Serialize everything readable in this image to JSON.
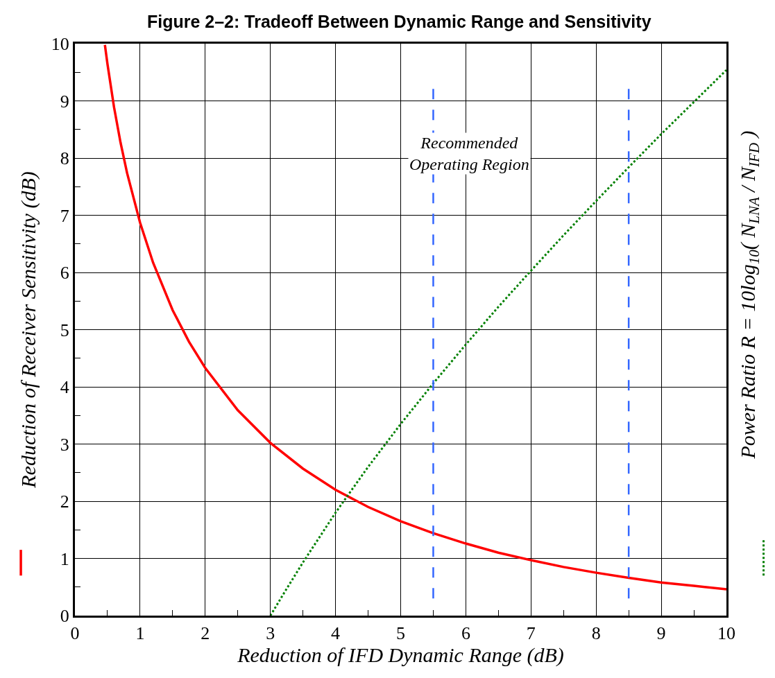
{
  "chart_data": {
    "type": "line",
    "title": "Figure 2–2: Tradeoff Between Dynamic Range and Sensitivity",
    "xlabel": "Reduction of IFD Dynamic Range (dB)",
    "ylabel": "Reduction of Receiver Sensitivity (dB)",
    "y2label": "Power Ratio R = 10log$_{10}$( N$_{LNA}$ / N$_{IFD}$ )",
    "series": [
      {
        "color": "#ff0000",
        "line_style": "solid",
        "x": [
          0.46,
          0.5,
          0.6,
          0.7,
          0.8,
          1,
          1.2,
          1.5,
          1.75,
          2,
          2.5,
          3,
          3.5,
          4,
          4.5,
          5,
          5.5,
          6,
          6.5,
          7,
          7.5,
          8,
          8.5,
          9,
          9.5,
          10
        ],
        "values": [
          9.98,
          9.64,
          8.89,
          8.27,
          7.74,
          6.87,
          6.17,
          5.34,
          4.79,
          4.33,
          3.59,
          3.02,
          2.57,
          2.2,
          1.9,
          1.65,
          1.44,
          1.26,
          1.1,
          0.97,
          0.85,
          0.75,
          0.66,
          0.58,
          0.52,
          0.46
        ]
      },
      {
        "color": "#008000",
        "line_style": "dotted",
        "x": [
          3,
          3.25,
          3.5,
          4,
          4.5,
          5,
          5.5,
          6,
          6.5,
          7,
          7.5,
          8,
          8.5,
          9,
          9.5,
          10
        ],
        "values": [
          0,
          0.47,
          0.93,
          1.8,
          2.6,
          3.35,
          4.06,
          4.74,
          5.4,
          6.03,
          6.65,
          7.25,
          7.84,
          8.42,
          8.98,
          9.54
        ]
      }
    ],
    "ref_lines": [
      {
        "axis": "x",
        "value": 5.5,
        "color": "#3366ff",
        "line_style": "dashed"
      },
      {
        "axis": "x",
        "value": 8.5,
        "color": "#3366ff",
        "line_style": "dashed"
      }
    ],
    "annotations": [
      "Recommended\nOperating Region"
    ],
    "xlim": [
      0,
      10
    ],
    "xticks": [
      0,
      1,
      2,
      3,
      4,
      5,
      6,
      7,
      8,
      9,
      10
    ],
    "ylim": [
      0,
      10
    ],
    "yticks": [
      0,
      1,
      2,
      3,
      4,
      5,
      6,
      7,
      8,
      9,
      10
    ],
    "grid": true,
    "marker": "none"
  }
}
